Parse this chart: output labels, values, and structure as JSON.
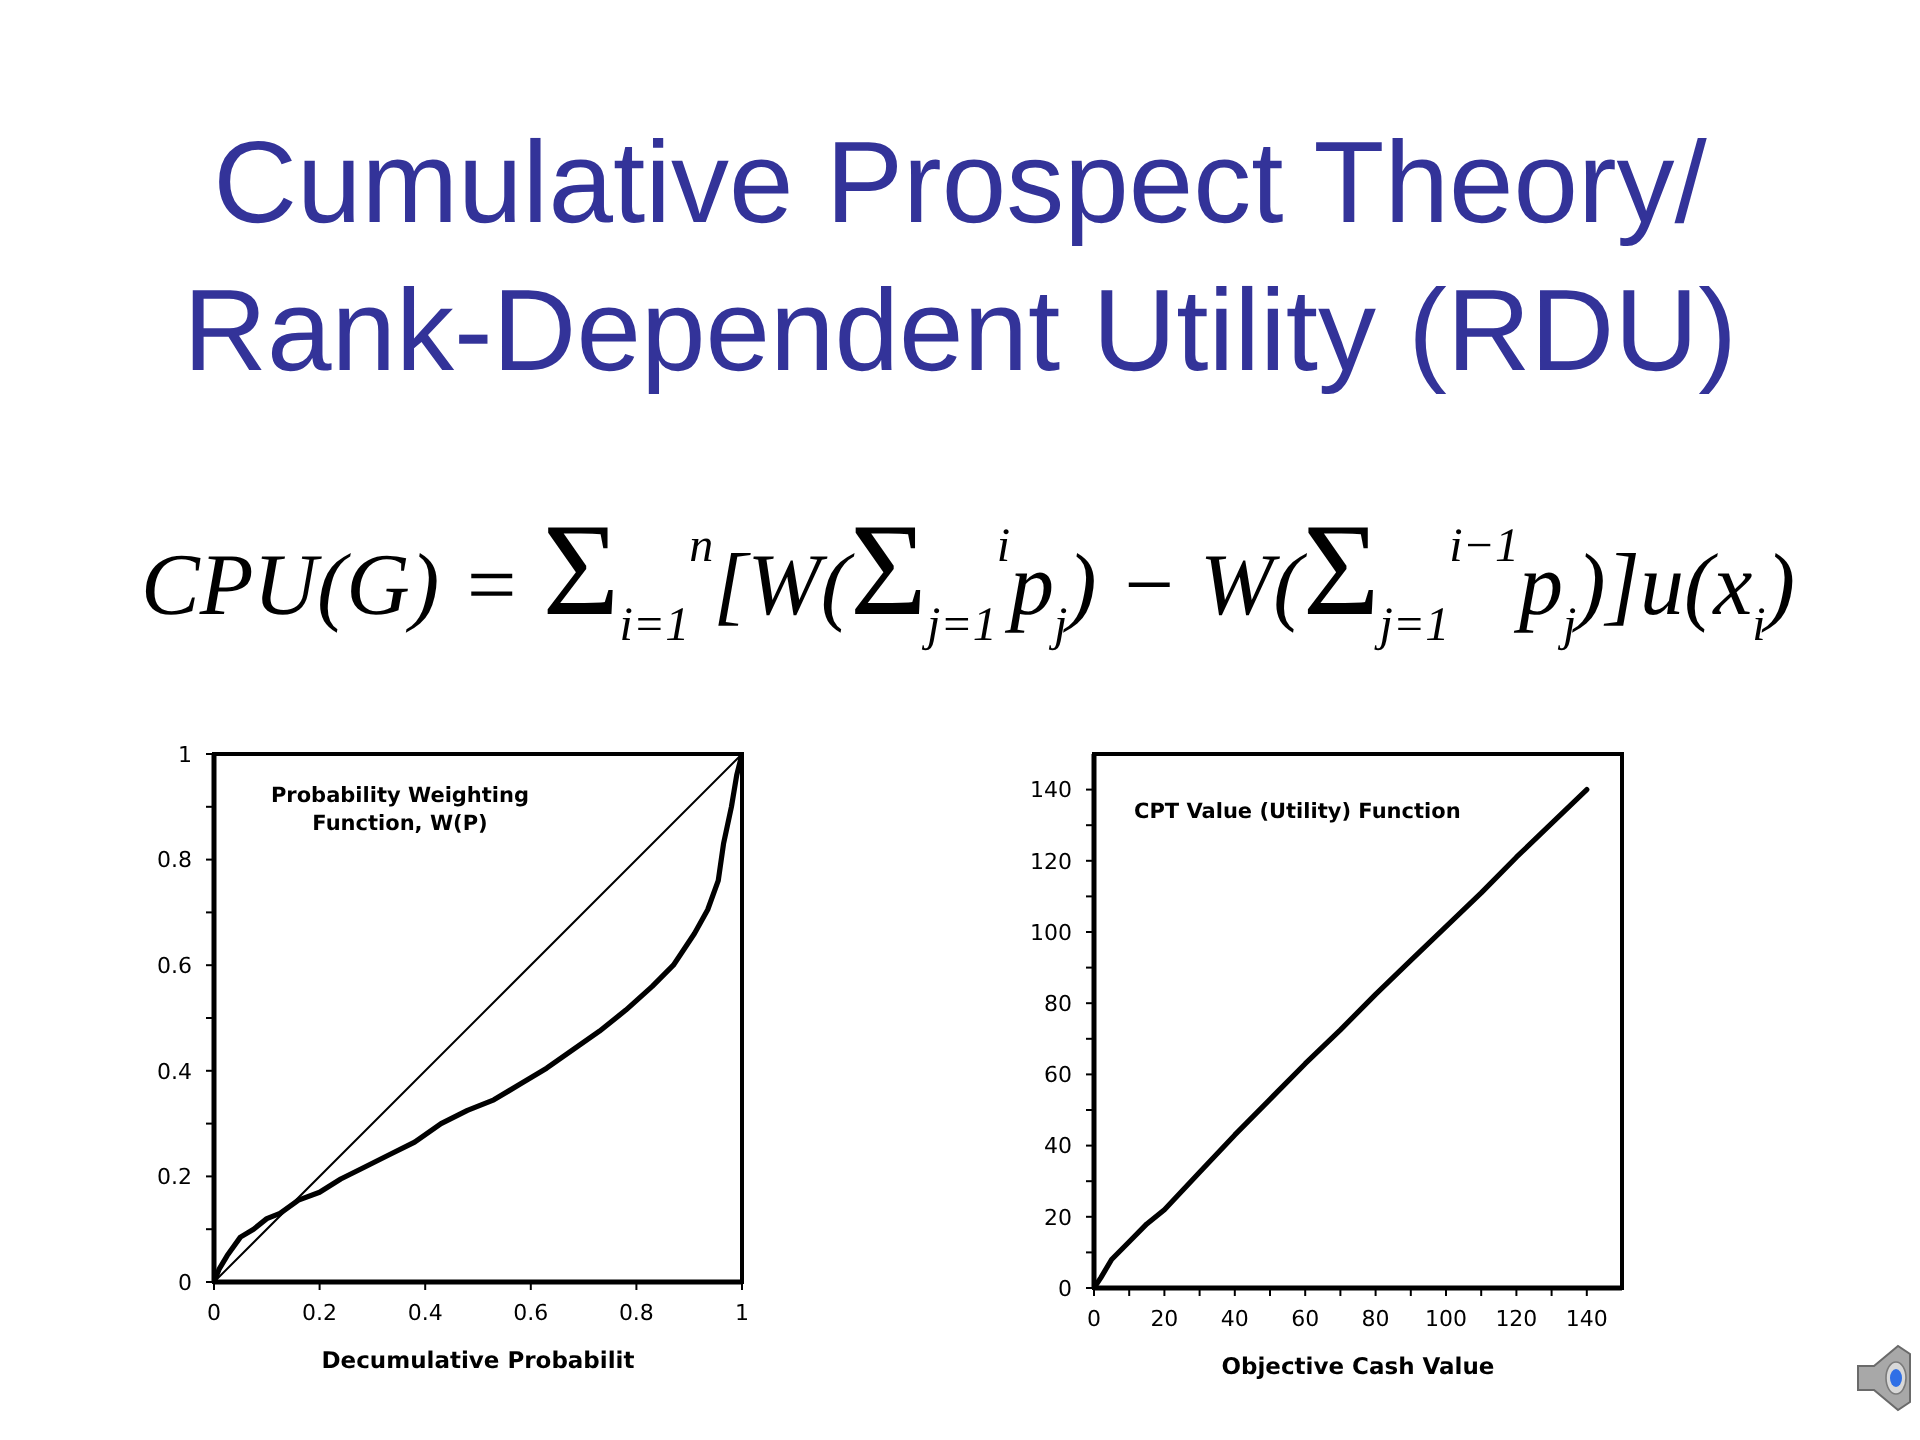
{
  "chart_data": [
    {
      "type": "other",
      "title": "Cumulative Prospect Theory/ Rank-Dependent Utility (RDU)",
      "annotations": [
        "CPU(G) = Σ$_{i=1}$$^{n}$[W(Σ$_{j=1}$$^{i}$p$_{j}$) − W(Σ$_{j=1}$$^{i−1}$p$_{j}$)]u(x$_{i}$)"
      ]
    },
    {
      "type": "line",
      "title": "Probability Weighting Function, W(P)",
      "xlabel": "Decumulative Probabilit",
      "xlim": [
        0,
        1
      ],
      "ylim": [
        0,
        1
      ],
      "xticks": [
        0,
        0.2,
        0.4,
        0.6,
        0.8,
        1
      ],
      "yticks": [
        0,
        {
          "value": 0.1,
          "label": null
        },
        0.2,
        {
          "value": 0.3,
          "label": null
        },
        0.4,
        {
          "value": 0.5,
          "label": null
        },
        0.6,
        {
          "value": 0.7,
          "label": null
        },
        0.8,
        {
          "value": 0.9,
          "label": null
        },
        1
      ],
      "series": [
        {
          "color": "#000000",
          "x": [
            0,
            0.01,
            0.025,
            0.05,
            0.075,
            0.1,
            0.125,
            0.16,
            0.2,
            0.24,
            0.28,
            0.33,
            0.38,
            0.43,
            0.48,
            0.53,
            0.58,
            0.63,
            0.68,
            0.73,
            0.78,
            0.83,
            0.87,
            0.91,
            0.935,
            0.955,
            0.965,
            0.98,
            0.99,
            1
          ],
          "values": [
            0,
            0.025,
            0.05,
            0.085,
            0.1,
            0.12,
            0.13,
            0.155,
            0.17,
            0.195,
            0.215,
            0.24,
            0.265,
            0.3,
            0.325,
            0.345,
            0.375,
            0.405,
            0.44,
            0.475,
            0.515,
            0.56,
            0.6,
            0.66,
            0.705,
            0.76,
            0.83,
            0.9,
            0.96,
            1
          ]
        },
        {
          "color": "#000000",
          "x": [
            0,
            1
          ],
          "values": [
            0,
            1
          ]
        }
      ]
    },
    {
      "type": "line",
      "title": "CPT Value (Utility) Function",
      "xlabel": "Objective Cash Value",
      "xlim": [
        0,
        150
      ],
      "ylim": [
        0,
        150
      ],
      "xticks": [
        0,
        {
          "value": 10,
          "label": null
        },
        20,
        {
          "value": 30,
          "label": null
        },
        40,
        {
          "value": 50,
          "label": null
        },
        60,
        {
          "value": 70,
          "label": null
        },
        80,
        {
          "value": 90,
          "label": null
        },
        100,
        {
          "value": 110,
          "label": null
        },
        120,
        {
          "value": 130,
          "label": null
        },
        140
      ],
      "yticks": [
        0,
        {
          "value": 10,
          "label": null
        },
        20,
        {
          "value": 30,
          "label": null
        },
        40,
        {
          "value": 50,
          "label": null
        },
        60,
        {
          "value": 70,
          "label": null
        },
        80,
        {
          "value": 90,
          "label": null
        },
        100,
        {
          "value": 110,
          "label": null
        },
        120,
        {
          "value": 130,
          "label": null
        },
        140
      ],
      "series": [
        {
          "color": "#000000",
          "x": [
            0,
            2,
            5,
            10,
            15,
            20,
            30,
            40,
            50,
            60,
            70,
            80,
            90,
            100,
            110,
            120,
            130,
            140
          ],
          "values": [
            0,
            3,
            8,
            13,
            18,
            22,
            32.5,
            43,
            53,
            63,
            72.5,
            82.5,
            92,
            101.5,
            111,
            121,
            130.5,
            140
          ]
        }
      ]
    }
  ]
}
